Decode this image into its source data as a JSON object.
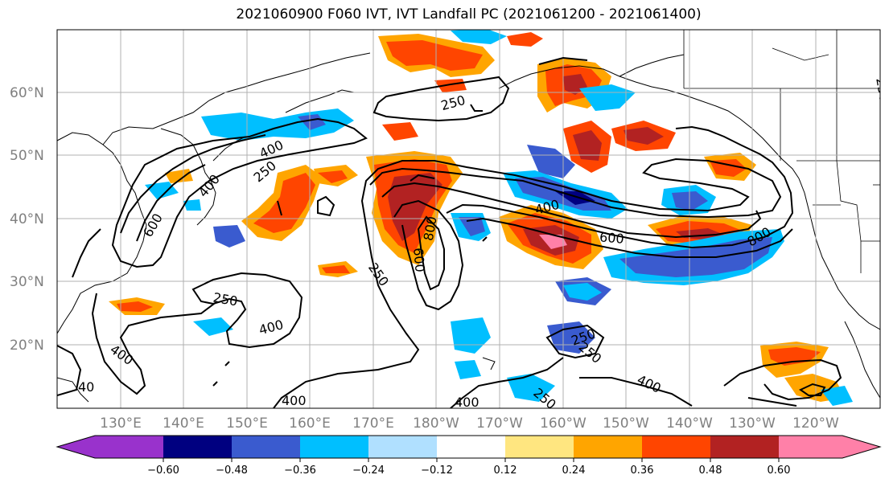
{
  "title": "2021060900 F060 IVT, IVT Landfall PC (2021061200 - 2021061400)",
  "lat_labels": [
    "60°N",
    "50°N",
    "40°N",
    "30°N",
    "20°N"
  ],
  "lon_labels": [
    "130°E",
    "140°E",
    "150°E",
    "160°E",
    "170°E",
    "180°W",
    "170°W",
    "160°W",
    "150°W",
    "140°W",
    "130°W",
    "120°W"
  ],
  "contour_labels": [
    "250",
    "250",
    "250",
    "250",
    "250",
    "250",
    "250",
    "400",
    "400",
    "400",
    "400",
    "400",
    "400",
    "400",
    "400",
    "600",
    "600",
    "600",
    "800",
    "800",
    "40",
    "250"
  ],
  "colorbar": {
    "ticks": [
      "−0.60",
      "−0.48",
      "−0.36",
      "−0.24",
      "−0.12",
      "0.12",
      "0.24",
      "0.36",
      "0.48",
      "0.60"
    ],
    "colors": [
      "#9932cc",
      "#000080",
      "#3a5bcf",
      "#00bfff",
      "#b0e0ff",
      "#ffffff",
      "#ffe680",
      "#ffa500",
      "#ff4500",
      "#b22222",
      "#ff80a8",
      "#ff80a8"
    ]
  },
  "shading_colors": {
    "deep_purple": "#9932cc",
    "navy": "#000080",
    "blue": "#3a5bcf",
    "sky": "#00bfff",
    "light_blue": "#b0e0ff",
    "yellow": "#ffe680",
    "orange": "#ffa500",
    "red_orange": "#ff4500",
    "dark_red": "#b22222",
    "pink": "#ff80a8"
  }
}
